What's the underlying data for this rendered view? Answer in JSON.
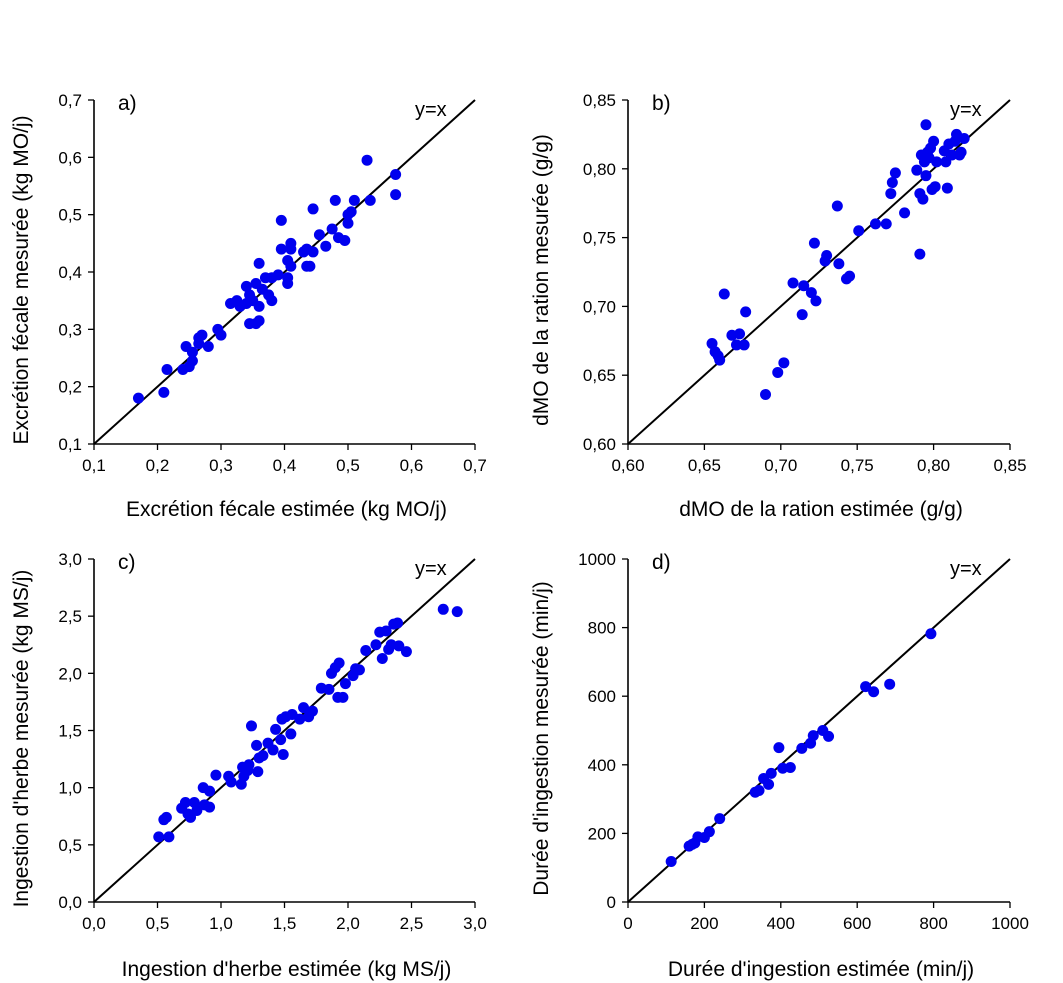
{
  "chart_data": [
    {
      "id": "a",
      "type": "scatter",
      "panel_label": "a)",
      "annotation": "y=x",
      "xlabel": "Excrétion fécale estimée (kg MO/j)",
      "ylabel": "Excrétion fécale mesurée (kg MO/j)",
      "xlim": [
        0.1,
        0.7
      ],
      "ylim": [
        0.1,
        0.7
      ],
      "xticks": [
        0.1,
        0.2,
        0.3,
        0.4,
        0.5,
        0.6,
        0.7
      ],
      "yticks": [
        0.1,
        0.2,
        0.3,
        0.4,
        0.5,
        0.6,
        0.7
      ],
      "xtick_labels": [
        "0,1",
        "0,2",
        "0,3",
        "0,4",
        "0,5",
        "0,6",
        "0,7"
      ],
      "ytick_labels": [
        "0,1",
        "0,2",
        "0,3",
        "0,4",
        "0,5",
        "0,6",
        "0,7"
      ],
      "reference_line": "y=x",
      "marker_color": "#0000ee",
      "points": [
        [
          0.17,
          0.18
        ],
        [
          0.21,
          0.19
        ],
        [
          0.215,
          0.23
        ],
        [
          0.24,
          0.23
        ],
        [
          0.25,
          0.235
        ],
        [
          0.245,
          0.27
        ],
        [
          0.255,
          0.245
        ],
        [
          0.255,
          0.26
        ],
        [
          0.265,
          0.275
        ],
        [
          0.27,
          0.29
        ],
        [
          0.265,
          0.285
        ],
        [
          0.28,
          0.27
        ],
        [
          0.295,
          0.3
        ],
        [
          0.3,
          0.29
        ],
        [
          0.315,
          0.345
        ],
        [
          0.325,
          0.35
        ],
        [
          0.33,
          0.34
        ],
        [
          0.34,
          0.345
        ],
        [
          0.34,
          0.375
        ],
        [
          0.345,
          0.36
        ],
        [
          0.35,
          0.35
        ],
        [
          0.345,
          0.31
        ],
        [
          0.355,
          0.31
        ],
        [
          0.36,
          0.315
        ],
        [
          0.355,
          0.38
        ],
        [
          0.36,
          0.415
        ],
        [
          0.365,
          0.37
        ],
        [
          0.37,
          0.39
        ],
        [
          0.36,
          0.34
        ],
        [
          0.375,
          0.36
        ],
        [
          0.38,
          0.35
        ],
        [
          0.38,
          0.39
        ],
        [
          0.39,
          0.395
        ],
        [
          0.395,
          0.44
        ],
        [
          0.395,
          0.49
        ],
        [
          0.405,
          0.38
        ],
        [
          0.405,
          0.39
        ],
        [
          0.405,
          0.42
        ],
        [
          0.41,
          0.44
        ],
        [
          0.41,
          0.45
        ],
        [
          0.41,
          0.41
        ],
        [
          0.43,
          0.435
        ],
        [
          0.435,
          0.41
        ],
        [
          0.44,
          0.41
        ],
        [
          0.435,
          0.44
        ],
        [
          0.445,
          0.435
        ],
        [
          0.445,
          0.51
        ],
        [
          0.455,
          0.465
        ],
        [
          0.465,
          0.445
        ],
        [
          0.475,
          0.475
        ],
        [
          0.48,
          0.525
        ],
        [
          0.485,
          0.46
        ],
        [
          0.495,
          0.455
        ],
        [
          0.5,
          0.485
        ],
        [
          0.5,
          0.5
        ],
        [
          0.505,
          0.505
        ],
        [
          0.51,
          0.525
        ],
        [
          0.53,
          0.595
        ],
        [
          0.535,
          0.525
        ],
        [
          0.575,
          0.535
        ],
        [
          0.575,
          0.57
        ]
      ]
    },
    {
      "id": "b",
      "type": "scatter",
      "panel_label": "b)",
      "annotation": "y=x",
      "xlabel": "dMO de la ration estimée (g/g)",
      "ylabel": "dMO de la ration mesurée (g/g)",
      "xlim": [
        0.6,
        0.85
      ],
      "ylim": [
        0.6,
        0.85
      ],
      "xticks": [
        0.6,
        0.65,
        0.7,
        0.75,
        0.8,
        0.85
      ],
      "yticks": [
        0.6,
        0.65,
        0.7,
        0.75,
        0.8,
        0.85
      ],
      "xtick_labels": [
        "0,60",
        "0,65",
        "0,70",
        "0,75",
        "0,80",
        "0,85"
      ],
      "ytick_labels": [
        "0,60",
        "0,65",
        "0,70",
        "0,75",
        "0,80",
        "0,85"
      ],
      "reference_line": "y=x",
      "marker_color": "#0000ee",
      "points": [
        [
          0.655,
          0.673
        ],
        [
          0.657,
          0.667
        ],
        [
          0.659,
          0.664
        ],
        [
          0.66,
          0.661
        ],
        [
          0.663,
          0.709
        ],
        [
          0.668,
          0.679
        ],
        [
          0.671,
          0.672
        ],
        [
          0.673,
          0.68
        ],
        [
          0.676,
          0.672
        ],
        [
          0.677,
          0.696
        ],
        [
          0.69,
          0.636
        ],
        [
          0.698,
          0.652
        ],
        [
          0.702,
          0.659
        ],
        [
          0.708,
          0.717
        ],
        [
          0.714,
          0.694
        ],
        [
          0.715,
          0.715
        ],
        [
          0.72,
          0.71
        ],
        [
          0.722,
          0.746
        ],
        [
          0.723,
          0.704
        ],
        [
          0.729,
          0.733
        ],
        [
          0.73,
          0.737
        ],
        [
          0.737,
          0.773
        ],
        [
          0.738,
          0.731
        ],
        [
          0.743,
          0.72
        ],
        [
          0.745,
          0.722
        ],
        [
          0.751,
          0.755
        ],
        [
          0.762,
          0.76
        ],
        [
          0.769,
          0.76
        ],
        [
          0.772,
          0.782
        ],
        [
          0.773,
          0.79
        ],
        [
          0.775,
          0.797
        ],
        [
          0.781,
          0.768
        ],
        [
          0.789,
          0.799
        ],
        [
          0.791,
          0.738
        ],
        [
          0.791,
          0.782
        ],
        [
          0.792,
          0.81
        ],
        [
          0.793,
          0.778
        ],
        [
          0.794,
          0.805
        ],
        [
          0.795,
          0.832
        ],
        [
          0.795,
          0.795
        ],
        [
          0.796,
          0.812
        ],
        [
          0.797,
          0.808
        ],
        [
          0.798,
          0.815
        ],
        [
          0.799,
          0.785
        ],
        [
          0.8,
          0.82
        ],
        [
          0.801,
          0.787
        ],
        [
          0.802,
          0.805
        ],
        [
          0.807,
          0.813
        ],
        [
          0.808,
          0.805
        ],
        [
          0.809,
          0.786
        ],
        [
          0.81,
          0.818
        ],
        [
          0.812,
          0.81
        ],
        [
          0.814,
          0.82
        ],
        [
          0.815,
          0.825
        ],
        [
          0.817,
          0.81
        ],
        [
          0.818,
          0.812
        ],
        [
          0.82,
          0.822
        ]
      ]
    },
    {
      "id": "c",
      "type": "scatter",
      "panel_label": "c)",
      "annotation": "y=x",
      "xlabel": "Ingestion d'herbe estimée (kg MS/j)",
      "ylabel": "Ingestion d'herbe mesurée (kg MS/j)",
      "xlim": [
        0.0,
        3.0
      ],
      "ylim": [
        0.0,
        3.0
      ],
      "xticks": [
        0.0,
        0.5,
        1.0,
        1.5,
        2.0,
        2.5,
        3.0
      ],
      "yticks": [
        0.0,
        0.5,
        1.0,
        1.5,
        2.0,
        2.5,
        3.0
      ],
      "xtick_labels": [
        "0,0",
        "0,5",
        "1,0",
        "1,5",
        "2,0",
        "2,5",
        "3,0"
      ],
      "ytick_labels": [
        "0,0",
        "0,5",
        "1,0",
        "1,5",
        "2,0",
        "2,5",
        "3,0"
      ],
      "reference_line": "y=x",
      "marker_color": "#0000ee",
      "points": [
        [
          0.51,
          0.57
        ],
        [
          0.55,
          0.72
        ],
        [
          0.57,
          0.74
        ],
        [
          0.59,
          0.57
        ],
        [
          0.69,
          0.82
        ],
        [
          0.72,
          0.87
        ],
        [
          0.74,
          0.77
        ],
        [
          0.76,
          0.74
        ],
        [
          0.79,
          0.87
        ],
        [
          0.81,
          0.8
        ],
        [
          0.86,
          1.0
        ],
        [
          0.87,
          0.85
        ],
        [
          0.91,
          0.97
        ],
        [
          0.91,
          0.83
        ],
        [
          0.96,
          1.11
        ],
        [
          1.06,
          1.1
        ],
        [
          1.08,
          1.05
        ],
        [
          1.16,
          1.03
        ],
        [
          1.17,
          1.18
        ],
        [
          1.18,
          1.1
        ],
        [
          1.21,
          1.15
        ],
        [
          1.22,
          1.2
        ],
        [
          1.24,
          1.54
        ],
        [
          1.28,
          1.37
        ],
        [
          1.29,
          1.14
        ],
        [
          1.3,
          1.26
        ],
        [
          1.33,
          1.28
        ],
        [
          1.37,
          1.39
        ],
        [
          1.41,
          1.33
        ],
        [
          1.43,
          1.51
        ],
        [
          1.47,
          1.42
        ],
        [
          1.48,
          1.6
        ],
        [
          1.49,
          1.29
        ],
        [
          1.51,
          1.62
        ],
        [
          1.55,
          1.47
        ],
        [
          1.56,
          1.64
        ],
        [
          1.62,
          1.6
        ],
        [
          1.65,
          1.7
        ],
        [
          1.69,
          1.62
        ],
        [
          1.72,
          1.67
        ],
        [
          1.79,
          1.87
        ],
        [
          1.85,
          1.86
        ],
        [
          1.87,
          2.0
        ],
        [
          1.9,
          2.05
        ],
        [
          1.92,
          1.79
        ],
        [
          1.93,
          2.09
        ],
        [
          1.96,
          1.79
        ],
        [
          1.98,
          1.91
        ],
        [
          2.04,
          1.98
        ],
        [
          2.06,
          2.04
        ],
        [
          2.09,
          2.03
        ],
        [
          2.14,
          2.2
        ],
        [
          2.22,
          2.25
        ],
        [
          2.25,
          2.36
        ],
        [
          2.27,
          2.13
        ],
        [
          2.3,
          2.37
        ],
        [
          2.32,
          2.21
        ],
        [
          2.34,
          2.25
        ],
        [
          2.36,
          2.43
        ],
        [
          2.39,
          2.44
        ],
        [
          2.4,
          2.24
        ],
        [
          2.46,
          2.19
        ],
        [
          2.75,
          2.56
        ],
        [
          2.86,
          2.54
        ]
      ]
    },
    {
      "id": "d",
      "type": "scatter",
      "panel_label": "d)",
      "annotation": "y=x",
      "xlabel": "Durée d'ingestion estimée (min/j)",
      "ylabel": "Durée d'ingestion mesurée (min/j)",
      "xlim": [
        0,
        1000
      ],
      "ylim": [
        0,
        1000
      ],
      "xticks": [
        0,
        200,
        400,
        600,
        800,
        1000
      ],
      "yticks": [
        0,
        200,
        400,
        600,
        800,
        1000
      ],
      "xtick_labels": [
        "0",
        "200",
        "400",
        "600",
        "800",
        "1000"
      ],
      "ytick_labels": [
        "0",
        "200",
        "400",
        "600",
        "800",
        "1000"
      ],
      "reference_line": "y=x",
      "marker_color": "#0000ee",
      "points": [
        [
          113,
          118
        ],
        [
          160,
          163
        ],
        [
          168,
          168
        ],
        [
          175,
          172
        ],
        [
          183,
          190
        ],
        [
          200,
          188
        ],
        [
          213,
          205
        ],
        [
          240,
          243
        ],
        [
          333,
          320
        ],
        [
          343,
          325
        ],
        [
          355,
          360
        ],
        [
          368,
          343
        ],
        [
          375,
          375
        ],
        [
          395,
          450
        ],
        [
          405,
          390
        ],
        [
          425,
          392
        ],
        [
          455,
          448
        ],
        [
          478,
          463
        ],
        [
          485,
          485
        ],
        [
          510,
          500
        ],
        [
          525,
          483
        ],
        [
          622,
          628
        ],
        [
          643,
          613
        ],
        [
          685,
          635
        ],
        [
          793,
          782
        ]
      ]
    }
  ]
}
